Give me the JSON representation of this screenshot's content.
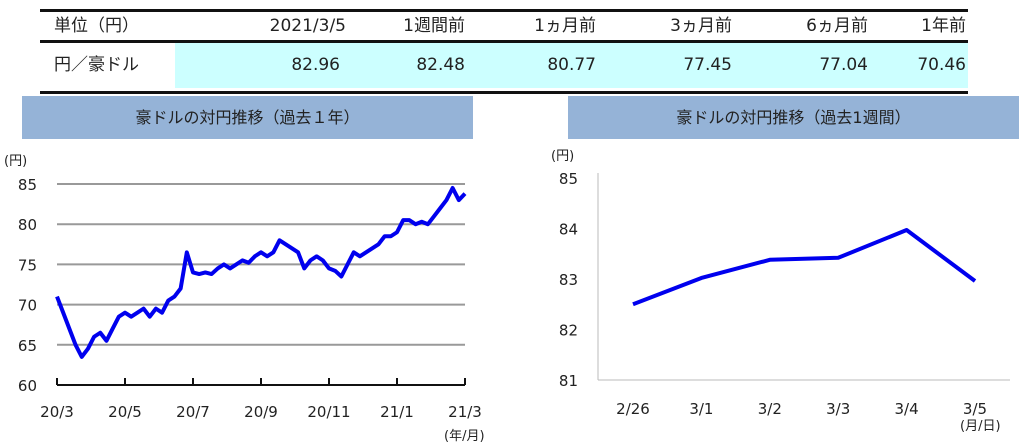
{
  "table": {
    "header": [
      "単位（円）",
      "2021/3/5",
      "1週間前",
      "1ヵ月前",
      "3ヵ月前",
      "6ヵ月前",
      "1年前"
    ],
    "row_label": "円／豪ドル",
    "row_values": [
      "82.96",
      "82.48",
      "80.77",
      "77.45",
      "77.04",
      "70.46"
    ]
  },
  "chart_data": [
    {
      "type": "line",
      "title": "豪ドルの対円推移（過去１年）",
      "yunit": "(円)",
      "xunit": "(年/月)",
      "ylim": [
        60,
        85
      ],
      "yticks": [
        60,
        65,
        70,
        75,
        80,
        85
      ],
      "xticks": [
        "20/3",
        "20/5",
        "20/7",
        "20/9",
        "20/11",
        "21/1",
        "21/3"
      ],
      "x_range": [
        "2020/3/5",
        "2021/3/5"
      ],
      "grid": true,
      "color": "#0000ee",
      "values": [
        71,
        69,
        67,
        65,
        63.5,
        64.5,
        66,
        66.5,
        65.5,
        67,
        68.5,
        69,
        68.5,
        69,
        69.5,
        68.5,
        69.5,
        69,
        70.5,
        71,
        72,
        76.5,
        74,
        73.8,
        74,
        73.8,
        74.5,
        75,
        74.5,
        75,
        75.5,
        75.2,
        76,
        76.5,
        76,
        76.5,
        78,
        77.5,
        77,
        76.5,
        74.5,
        75.5,
        76,
        75.5,
        74.5,
        74.2,
        73.5,
        75,
        76.5,
        76,
        76.5,
        77,
        77.5,
        78.5,
        78.5,
        79,
        80.5,
        80.5,
        80,
        80.3,
        80,
        81,
        82,
        83,
        84.5,
        83,
        83.8
      ]
    },
    {
      "type": "line",
      "title": "豪ドルの対円推移（過去1週間）",
      "yunit": "(円)",
      "xunit": "(月/日)",
      "ylim": [
        81,
        85
      ],
      "yticks": [
        81,
        82,
        83,
        84,
        85
      ],
      "grid": false,
      "color": "#0000ee",
      "categories": [
        "2/26",
        "3/1",
        "3/2",
        "3/3",
        "3/4",
        "3/5"
      ],
      "values": [
        82.5,
        83.02,
        83.38,
        83.42,
        83.97,
        82.96
      ]
    }
  ]
}
